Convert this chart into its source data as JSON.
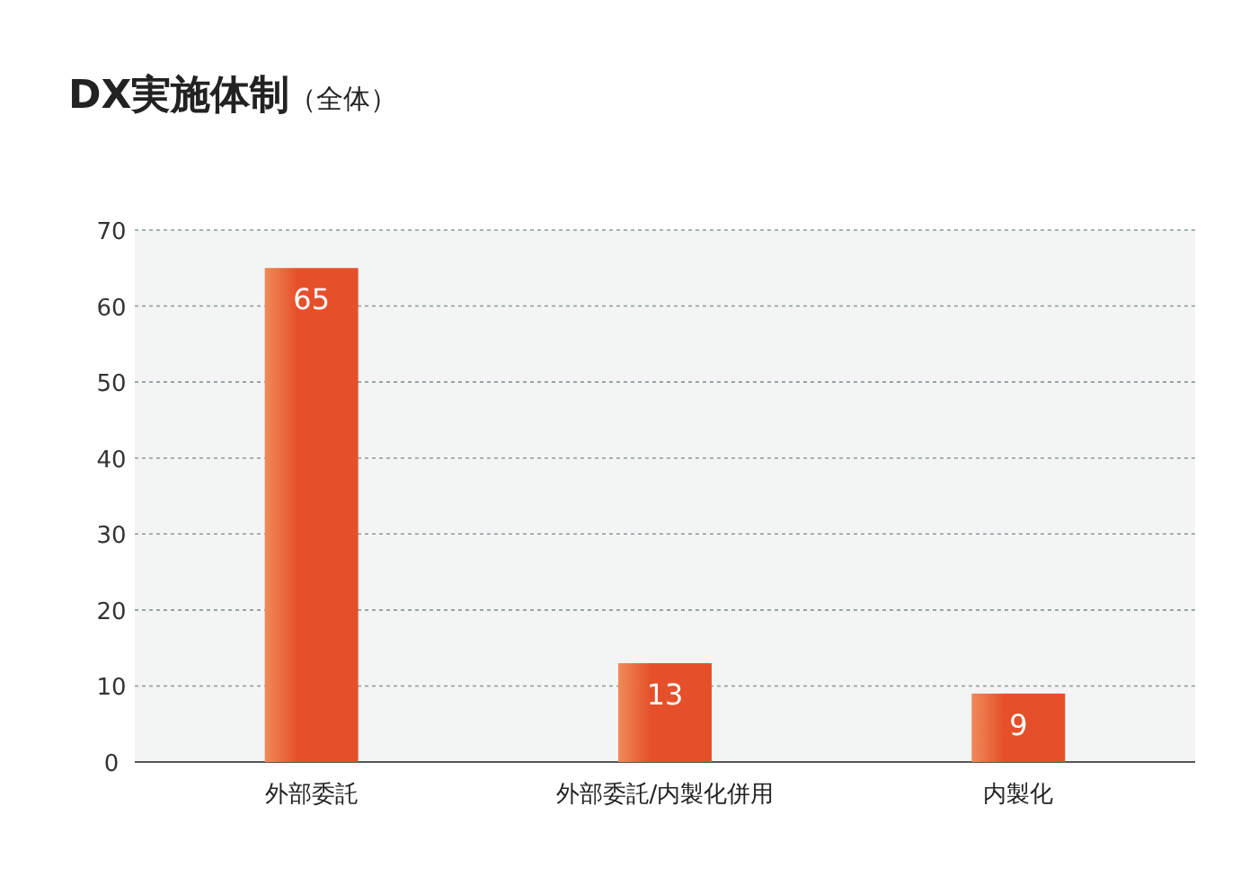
{
  "chart_data": {
    "type": "bar",
    "title": "DX実施体制",
    "subtitle": "（全体）",
    "categories": [
      "外部委託",
      "外部委託/内製化併用",
      "内製化"
    ],
    "values": [
      65,
      13,
      9
    ],
    "color": "#e5502a",
    "ylim": [
      0,
      70
    ],
    "yticks": [
      0,
      10,
      20,
      30,
      40,
      50,
      60,
      70
    ],
    "grid": "y",
    "data_labels": true
  }
}
